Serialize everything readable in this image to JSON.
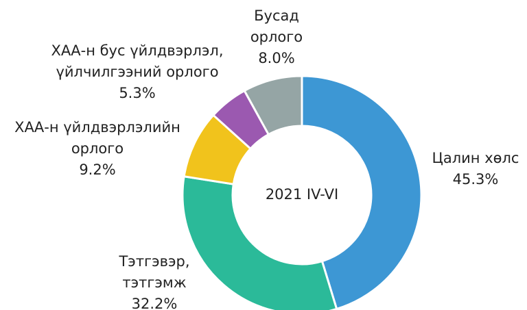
{
  "chart_data": {
    "type": "donut",
    "center_label": "2021 IV-VI",
    "categories": [
      [
        "Цалин хөлс"
      ],
      [
        "Тэтгэвэр,",
        "тэтгэмж"
      ],
      [
        "ХАА-н үйлдвэрлэлийн",
        "орлого"
      ],
      [
        "ХАА-н бус үйлдвэрлэл,",
        "үйлчилгээний орлого"
      ],
      [
        "Бусад",
        "орлого"
      ]
    ],
    "values": [
      45.3,
      32.2,
      9.2,
      5.3,
      8.0
    ],
    "value_labels": [
      "45.3%",
      "32.2%",
      "9.2%",
      "5.3%",
      "8.0%"
    ],
    "colors": [
      "#3d97d4",
      "#2bba99",
      "#f1c31c",
      "#9b59b0",
      "#95a5a5"
    ]
  }
}
